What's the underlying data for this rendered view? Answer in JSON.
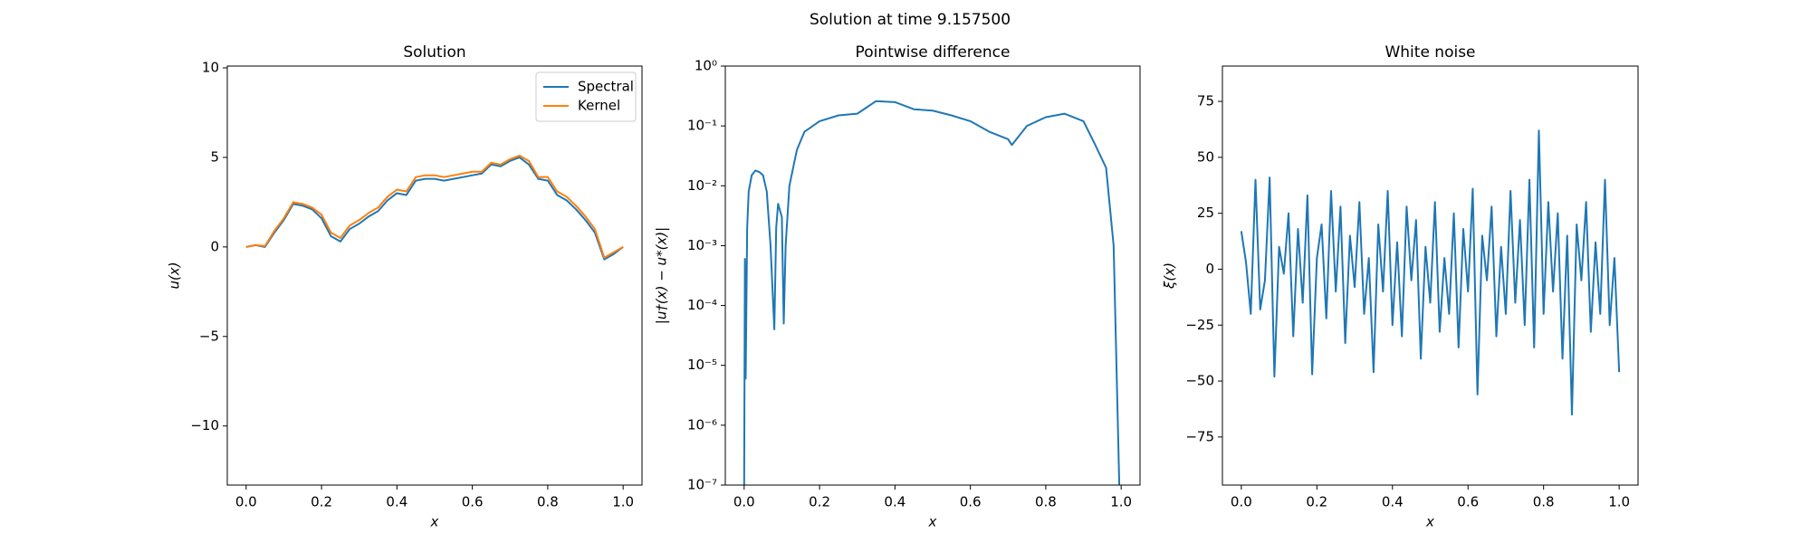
{
  "title": "Solution at time 9.157500",
  "chart_data": [
    {
      "type": "line",
      "title": "Solution",
      "xlabel": "x",
      "ylabel": "u(x)",
      "x": [
        0,
        0.025,
        0.05,
        0.075,
        0.1,
        0.125,
        0.15,
        0.175,
        0.2,
        0.225,
        0.25,
        0.275,
        0.3,
        0.325,
        0.35,
        0.375,
        0.4,
        0.425,
        0.45,
        0.475,
        0.5,
        0.525,
        0.55,
        0.575,
        0.6,
        0.625,
        0.65,
        0.675,
        0.7,
        0.725,
        0.75,
        0.775,
        0.8,
        0.825,
        0.85,
        0.875,
        0.9,
        0.925,
        0.95,
        0.975,
        1.0
      ],
      "series": [
        {
          "name": "Spectral",
          "color": "#1f77b4",
          "values": [
            0,
            0.1,
            0,
            0.8,
            1.5,
            2.4,
            2.3,
            2.1,
            1.6,
            0.6,
            0.3,
            1.0,
            1.3,
            1.7,
            2.0,
            2.6,
            3.0,
            2.9,
            3.7,
            3.8,
            3.8,
            3.7,
            3.8,
            3.9,
            4.0,
            4.1,
            4.6,
            4.5,
            4.8,
            5.0,
            4.6,
            3.8,
            3.7,
            2.9,
            2.6,
            2.1,
            1.5,
            0.8,
            -0.7,
            -0.4,
            0.0
          ]
        },
        {
          "name": "Kernel",
          "color": "#ff7f0e",
          "values": [
            0,
            0.1,
            0.05,
            0.9,
            1.6,
            2.5,
            2.4,
            2.2,
            1.8,
            0.8,
            0.5,
            1.2,
            1.5,
            1.9,
            2.2,
            2.8,
            3.2,
            3.1,
            3.9,
            4.0,
            4.0,
            3.9,
            4.0,
            4.1,
            4.2,
            4.2,
            4.7,
            4.6,
            4.9,
            5.1,
            4.8,
            3.9,
            3.9,
            3.1,
            2.8,
            2.3,
            1.7,
            1.0,
            -0.6,
            -0.3,
            0.0
          ]
        }
      ],
      "legend": "upper right",
      "xlim": [
        -0.05,
        1.05
      ],
      "ylim": [
        -13.3,
        10.1
      ],
      "xticks": [
        {
          "value": 0,
          "label": "0.0"
        },
        {
          "value": 0.2,
          "label": "0.2"
        },
        {
          "value": 0.4,
          "label": "0.4"
        },
        {
          "value": 0.6,
          "label": "0.6"
        },
        {
          "value": 0.8,
          "label": "0.8"
        },
        {
          "value": 1,
          "label": "1.0"
        }
      ],
      "yticks": [
        {
          "value": -10,
          "label": "−10"
        },
        {
          "value": -5,
          "label": "−5"
        },
        0,
        5,
        10
      ]
    },
    {
      "type": "line",
      "title": "Pointwise difference",
      "xlabel": "x",
      "ylabel": "|u†(x) − u*(x)|",
      "log_y": true,
      "x": [
        0,
        0.002,
        0.004,
        0.008,
        0.012,
        0.02,
        0.03,
        0.04,
        0.05,
        0.06,
        0.07,
        0.08,
        0.085,
        0.09,
        0.1,
        0.105,
        0.11,
        0.12,
        0.14,
        0.16,
        0.2,
        0.25,
        0.3,
        0.35,
        0.4,
        0.45,
        0.5,
        0.55,
        0.6,
        0.65,
        0.7,
        0.71,
        0.75,
        0.8,
        0.85,
        0.9,
        0.93,
        0.96,
        0.98,
        0.995
      ],
      "series": [
        {
          "color": "#1f77b4",
          "values": [
            1e-07,
            0.0006,
            6e-06,
            0.002,
            0.008,
            0.015,
            0.018,
            0.017,
            0.015,
            0.008,
            0.001,
            4e-05,
            0.002,
            0.005,
            0.003,
            5e-05,
            0.001,
            0.01,
            0.04,
            0.08,
            0.12,
            0.15,
            0.16,
            0.26,
            0.25,
            0.19,
            0.18,
            0.15,
            0.12,
            0.08,
            0.06,
            0.048,
            0.1,
            0.14,
            0.16,
            0.12,
            0.05,
            0.02,
            0.001,
            1e-07
          ]
        }
      ],
      "xlim": [
        -0.05,
        1.05
      ],
      "ylim": [
        1e-07,
        1
      ],
      "xticks": [
        {
          "value": 0,
          "label": "0.0"
        },
        {
          "value": 0.2,
          "label": "0.2"
        },
        {
          "value": 0.4,
          "label": "0.4"
        },
        {
          "value": 0.6,
          "label": "0.6"
        },
        {
          "value": 0.8,
          "label": "0.8"
        },
        {
          "value": 1,
          "label": "1.0"
        }
      ],
      "yticks": [
        {
          "value": 1e-07,
          "label": "10⁻⁷"
        },
        {
          "value": 1e-06,
          "label": "10⁻⁶"
        },
        {
          "value": 1e-05,
          "label": "10⁻⁵"
        },
        {
          "value": 0.0001,
          "label": "10⁻⁴"
        },
        {
          "value": 0.001,
          "label": "10⁻³"
        },
        {
          "value": 0.01,
          "label": "10⁻²"
        },
        {
          "value": 0.1,
          "label": "10⁻¹"
        },
        {
          "value": 1,
          "label": "10⁰"
        }
      ]
    },
    {
      "type": "line",
      "title": "White noise",
      "xlabel": "x",
      "ylabel": "ξ(x)",
      "x": [
        0,
        0.0125,
        0.025,
        0.0375,
        0.05,
        0.0625,
        0.075,
        0.0875,
        0.1,
        0.1125,
        0.125,
        0.1375,
        0.15,
        0.1625,
        0.175,
        0.1875,
        0.2,
        0.2125,
        0.225,
        0.2375,
        0.25,
        0.2625,
        0.275,
        0.2875,
        0.3,
        0.3125,
        0.325,
        0.3375,
        0.35,
        0.3625,
        0.375,
        0.3875,
        0.4,
        0.4125,
        0.425,
        0.4375,
        0.45,
        0.4625,
        0.475,
        0.4875,
        0.5,
        0.5125,
        0.525,
        0.5375,
        0.55,
        0.5625,
        0.575,
        0.5875,
        0.6,
        0.6125,
        0.625,
        0.6375,
        0.65,
        0.6625,
        0.675,
        0.6875,
        0.7,
        0.7125,
        0.725,
        0.7375,
        0.75,
        0.7625,
        0.775,
        0.7875,
        0.8,
        0.8125,
        0.825,
        0.8375,
        0.85,
        0.8625,
        0.875,
        0.8875,
        0.9,
        0.9125,
        0.925,
        0.9375,
        0.95,
        0.9625,
        0.975,
        0.9875,
        1.0
      ],
      "series": [
        {
          "color": "#1f77b4",
          "values": [
            17,
            3,
            -20,
            40,
            -18,
            -5,
            41,
            -48,
            10,
            -2,
            25,
            -30,
            18,
            -15,
            33,
            -47,
            5,
            20,
            -22,
            35,
            -10,
            28,
            -33,
            15,
            -8,
            30,
            -20,
            5,
            -46,
            20,
            -10,
            35,
            -25,
            12,
            -30,
            28,
            -5,
            22,
            -40,
            10,
            -15,
            30,
            -28,
            5,
            -20,
            25,
            -35,
            18,
            -10,
            36,
            -56,
            15,
            -5,
            28,
            -30,
            10,
            -20,
            35,
            -15,
            22,
            -25,
            40,
            -35,
            62,
            -20,
            30,
            -10,
            25,
            -40,
            15,
            -65,
            20,
            -5,
            30,
            -28,
            12,
            -20,
            40,
            -25,
            5,
            -46
          ]
        }
      ],
      "xlim": [
        -0.05,
        1.05
      ],
      "ylim": [
        -96.5,
        90.8
      ],
      "xticks": [
        {
          "value": 0,
          "label": "0.0"
        },
        {
          "value": 0.2,
          "label": "0.2"
        },
        {
          "value": 0.4,
          "label": "0.4"
        },
        {
          "value": 0.6,
          "label": "0.6"
        },
        {
          "value": 0.8,
          "label": "0.8"
        },
        {
          "value": 1,
          "label": "1.0"
        }
      ],
      "yticks": [
        {
          "value": -75,
          "label": "−75"
        },
        {
          "value": -50,
          "label": "−50"
        },
        {
          "value": -25,
          "label": "−25"
        },
        0,
        25,
        50,
        75
      ]
    }
  ]
}
